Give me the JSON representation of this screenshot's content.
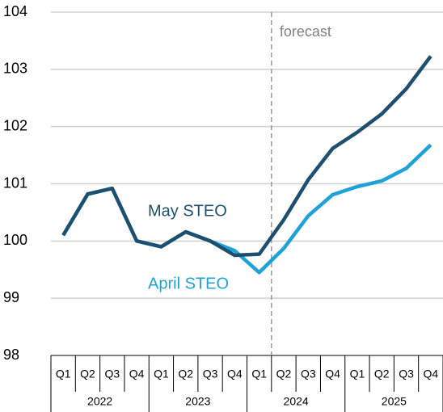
{
  "chart_data": {
    "type": "line",
    "categories": [
      "Q1",
      "Q2",
      "Q3",
      "Q4",
      "Q1",
      "Q2",
      "Q3",
      "Q4",
      "Q1",
      "Q2",
      "Q3",
      "Q4",
      "Q1",
      "Q2",
      "Q3",
      "Q4"
    ],
    "groups": [
      "2022",
      "2023",
      "2024",
      "2025"
    ],
    "series": [
      {
        "name": "April STEO",
        "color": "#1fa2d8",
        "values": [
          100.1,
          100.82,
          100.92,
          100.0,
          99.9,
          100.16,
          100.0,
          99.83,
          99.45,
          99.87,
          100.44,
          100.81,
          100.95,
          101.05,
          101.27,
          101.68
        ]
      },
      {
        "name": "May STEO",
        "color": "#1d4f6e",
        "values": [
          100.1,
          100.82,
          100.92,
          100.0,
          99.9,
          100.16,
          100.0,
          99.75,
          99.77,
          100.37,
          101.07,
          101.62,
          101.9,
          102.22,
          102.66,
          103.23
        ]
      }
    ],
    "annotation": "forecast",
    "ylim": [
      98,
      104
    ],
    "yticks": [
      98,
      99,
      100,
      101,
      102,
      103,
      104
    ],
    "grid": true
  }
}
